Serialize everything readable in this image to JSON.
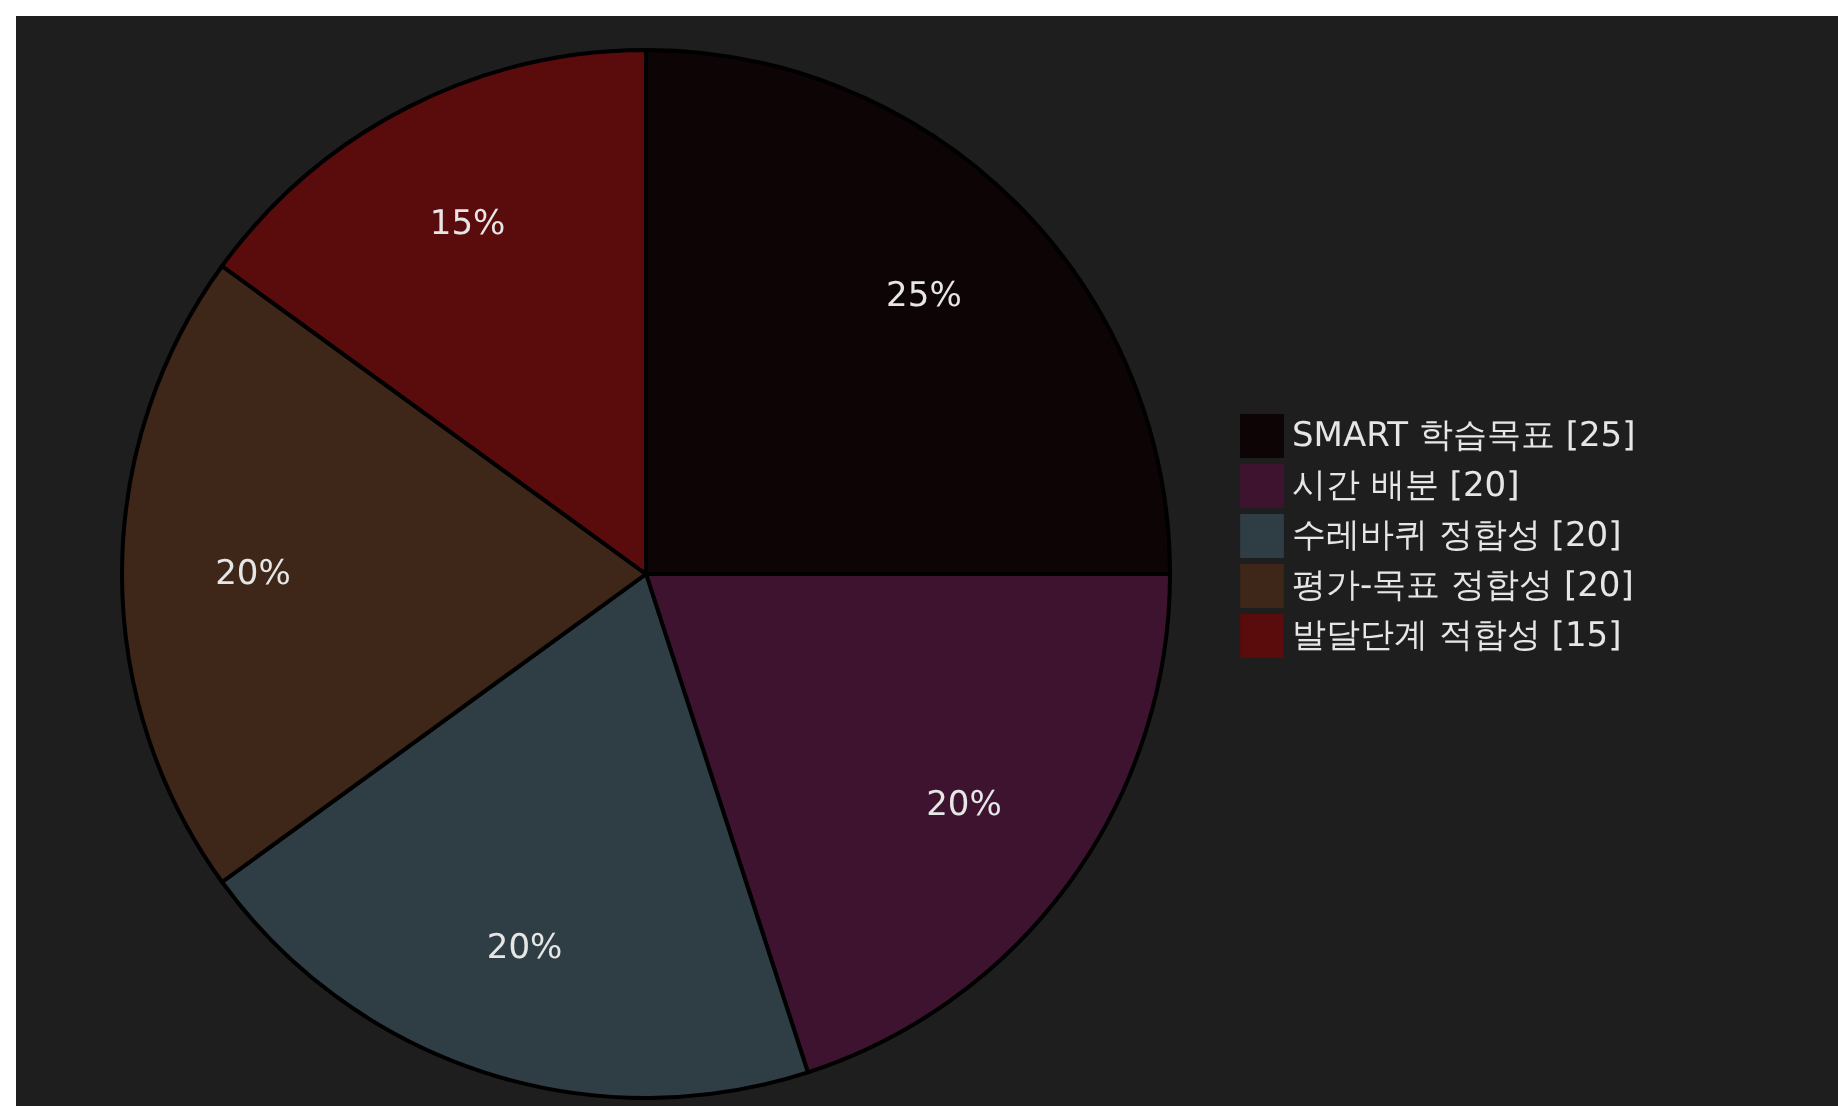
{
  "chart_data": {
    "type": "pie",
    "categories": [
      "SMART 학습목표 [25]",
      "시간 배분 [20]",
      "수레바퀴 정합성 [20]",
      "평가-목표 정합성 [20]",
      "발달단계 적합성 [15]"
    ],
    "values": [
      25,
      20,
      20,
      20,
      15
    ],
    "colors": [
      "#0c0405",
      "#3e1330",
      "#2f3d44",
      "#3e2618",
      "#5a0c0c"
    ],
    "value_labels": [
      "25%",
      "20%",
      "20%",
      "20%",
      "15%"
    ],
    "legend": "right"
  }
}
